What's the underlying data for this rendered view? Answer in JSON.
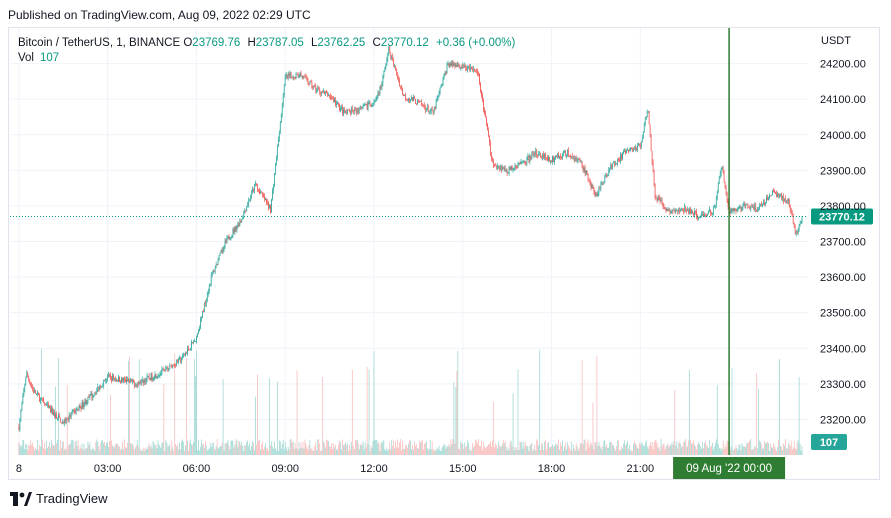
{
  "header": {
    "published": "Published on TradingView.com, Aug 09, 2022 02:29 UTC"
  },
  "legend": {
    "symbol": "Bitcoin / TetherUS, 1, BINANCE",
    "open_label": "O",
    "open": "23769.76",
    "high_label": "H",
    "high": "23787.05",
    "low_label": "L",
    "low": "23762.25",
    "close_label": "C",
    "close": "23770.12",
    "change": "+0.36 (+0.00%)",
    "vol_label": "Vol",
    "vol_value": "107"
  },
  "footer": {
    "brand": "TradingView"
  },
  "colors": {
    "up": "#26a69a",
    "down": "#ef5350",
    "up_volume": "#80cbc4",
    "down_volume": "#f7a6a4",
    "crosshair": "#2e7d32",
    "last_price": "#089981",
    "grid": "#f0f3fa"
  },
  "chart_data": {
    "type": "candlestick",
    "currency": "USDT",
    "y_ticks": [
      "23200.00",
      "23300.00",
      "23400.00",
      "23500.00",
      "23600.00",
      "23700.00",
      "23800.00",
      "23900.00",
      "24000.00",
      "24100.00",
      "24200.00"
    ],
    "y_min": 23100,
    "y_max": 24300,
    "x_ticks": [
      "8",
      "03:00",
      "06:00",
      "09:00",
      "12:00",
      "15:00",
      "18:00",
      "21:00"
    ],
    "crosshair_label": "09 Aug '22   00:00",
    "last_price": 23770.12,
    "last_price_label": "23770.12",
    "last_volume_label": "107",
    "price_path": [
      [
        "00:00",
        23180
      ],
      [
        "00:15",
        23330
      ],
      [
        "00:30",
        23280
      ],
      [
        "01:00",
        23230
      ],
      [
        "01:30",
        23190
      ],
      [
        "02:00",
        23230
      ],
      [
        "02:30",
        23270
      ],
      [
        "03:00",
        23320
      ],
      [
        "03:30",
        23310
      ],
      [
        "04:00",
        23300
      ],
      [
        "04:30",
        23320
      ],
      [
        "05:00",
        23340
      ],
      [
        "05:30",
        23370
      ],
      [
        "06:00",
        23430
      ],
      [
        "06:30",
        23600
      ],
      [
        "07:00",
        23700
      ],
      [
        "07:30",
        23760
      ],
      [
        "08:00",
        23860
      ],
      [
        "08:30",
        23790
      ],
      [
        "09:00",
        24160
      ],
      [
        "09:30",
        24170
      ],
      [
        "10:00",
        24130
      ],
      [
        "10:30",
        24110
      ],
      [
        "11:00",
        24060
      ],
      [
        "11:30",
        24070
      ],
      [
        "12:00",
        24090
      ],
      [
        "12:15",
        24140
      ],
      [
        "12:30",
        24240
      ],
      [
        "13:00",
        24110
      ],
      [
        "13:30",
        24090
      ],
      [
        "14:00",
        24060
      ],
      [
        "14:30",
        24200
      ],
      [
        "15:00",
        24190
      ],
      [
        "15:30",
        24180
      ],
      [
        "16:00",
        23920
      ],
      [
        "16:30",
        23900
      ],
      [
        "17:00",
        23920
      ],
      [
        "17:30",
        23950
      ],
      [
        "18:00",
        23930
      ],
      [
        "18:30",
        23950
      ],
      [
        "19:00",
        23920
      ],
      [
        "19:30",
        23830
      ],
      [
        "20:00",
        23910
      ],
      [
        "20:30",
        23950
      ],
      [
        "21:00",
        23970
      ],
      [
        "21:15",
        24080
      ],
      [
        "21:30",
        23830
      ],
      [
        "22:00",
        23780
      ],
      [
        "22:30",
        23790
      ],
      [
        "23:00",
        23770
      ],
      [
        "23:30",
        23790
      ],
      [
        "23:45",
        23920
      ],
      [
        "00:00",
        23780
      ],
      [
        "00:30",
        23800
      ],
      [
        "01:00",
        23790
      ],
      [
        "01:30",
        23840
      ],
      [
        "02:00",
        23810
      ],
      [
        "02:15",
        23720
      ],
      [
        "02:29",
        23770
      ]
    ]
  }
}
